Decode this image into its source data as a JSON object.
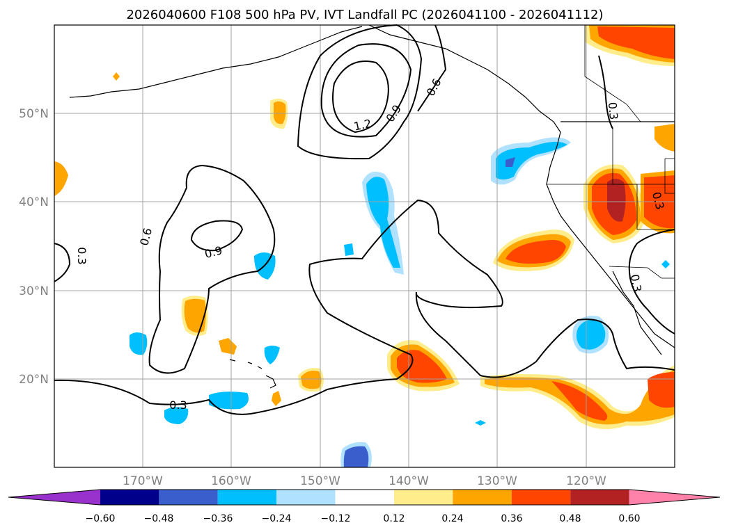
{
  "title": "2026040600 F108 500 hPa PV, IVT Landfall PC (2026041100 - 2026041112)",
  "lat_labels": [
    "50°N",
    "40°N",
    "30°N",
    "20°N"
  ],
  "lon_labels": [
    "170°W",
    "160°W",
    "150°W",
    "140°W",
    "130°W",
    "120°W"
  ],
  "contour_labels": [
    "1.2",
    "0.9",
    "0.6",
    "0.3",
    "0.6",
    "0.9",
    "0.3",
    "0.3",
    "0.3",
    "0.3"
  ],
  "colorbar": {
    "ticks": [
      "−0.60",
      "−0.48",
      "−0.36",
      "−0.24",
      "−0.12",
      "0.12",
      "0.24",
      "0.36",
      "0.48",
      "0.60"
    ],
    "colors": [
      "#9932cc",
      "#00008b",
      "#3a5fcd",
      "#00bfff",
      "#b0e2ff",
      "#ffffff",
      "#ffec8b",
      "#ffa500",
      "#ff4500",
      "#b22222",
      "#ff82ab"
    ]
  },
  "palette": {
    "neg_light": "#b0e2ff",
    "neg_mid": "#00bfff",
    "neg_deep": "#3a5fcd",
    "pos_light": "#ffec8b",
    "pos_mid": "#ffa500",
    "pos_deep": "#ff4500",
    "pos_max": "#b22222"
  }
}
